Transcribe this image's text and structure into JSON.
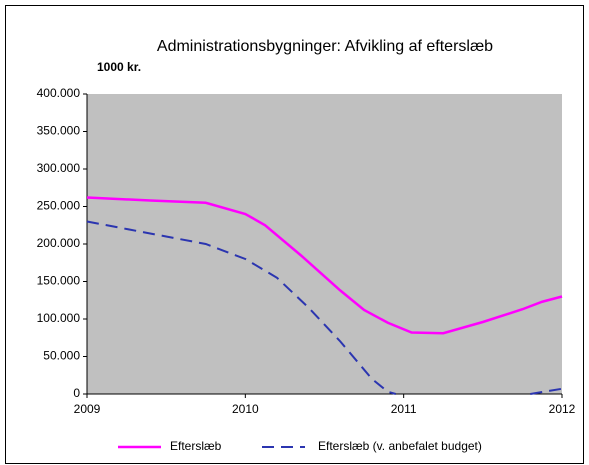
{
  "chart_data": {
    "type": "line",
    "title": "Administrationsbygninger: Afvikling af efterslæb",
    "subtitle": "1000 kr.",
    "series": [
      {
        "name": "Efterslæb",
        "color": "#ff00ff",
        "dash": false,
        "x": [
          2009,
          2009.4,
          2009.75,
          2010,
          2010.125,
          2010.35,
          2010.6,
          2010.75,
          2010.9,
          2011.05,
          2011.25,
          2011.5,
          2011.75,
          2011.875,
          2012
        ],
        "values": [
          262000,
          258000,
          255000,
          240000,
          225000,
          185000,
          138000,
          112000,
          95000,
          82000,
          81000,
          96000,
          113000,
          123000,
          130000
        ]
      },
      {
        "name": "Efterslæb (v. anbefalet budget)",
        "color": "#2b35b0",
        "dash": true,
        "x": [
          2009,
          2009.25,
          2009.5,
          2009.75,
          2010,
          2010.2,
          2010.4,
          2010.6,
          2010.8,
          2010.9,
          2010.95,
          2011.4,
          2011.8,
          2012
        ],
        "values": [
          230000,
          220000,
          210000,
          200000,
          180000,
          155000,
          115000,
          70000,
          20000,
          3000,
          0,
          null,
          0,
          7000
        ]
      }
    ],
    "xlim": [
      2009,
      2012
    ],
    "xticks": [
      2009,
      2010,
      2011,
      2012
    ],
    "ylim": [
      0,
      400000
    ],
    "yticks": [
      0,
      {
        "value": 50000,
        "label": "50.000"
      },
      {
        "value": 100000,
        "label": "100.000"
      },
      {
        "value": 150000,
        "label": "150.000"
      },
      {
        "value": 200000,
        "label": "200.000"
      },
      {
        "value": 250000,
        "label": "250.000"
      },
      {
        "value": 300000,
        "label": "300.000"
      },
      {
        "value": 350000,
        "label": "350.000"
      },
      {
        "value": 400000,
        "label": "400.000"
      }
    ],
    "plot_background": "#c0c0c0",
    "legend": "bottom"
  }
}
